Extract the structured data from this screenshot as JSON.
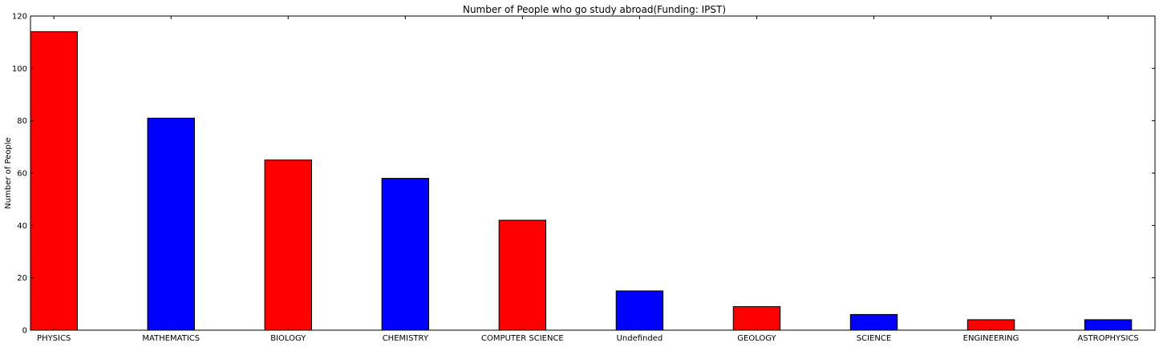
{
  "chart_data": {
    "type": "bar",
    "title": "Number of People who go study abroad(Funding: IPST)",
    "xlabel": "",
    "ylabel": "Number of People",
    "categories": [
      "PHYSICS",
      "MATHEMATICS",
      "BIOLOGY",
      "CHEMISTRY",
      "COMPUTER SCIENCE",
      "Undefinded",
      "GEOLOGY",
      "SCIENCE",
      "ENGINEERING",
      "ASTROPHYSICS"
    ],
    "values": [
      114,
      81,
      65,
      58,
      42,
      15,
      9,
      6,
      4,
      4
    ],
    "bar_colors": [
      "#ff0000",
      "#0000ff",
      "#ff0000",
      "#0000ff",
      "#ff0000",
      "#0000ff",
      "#ff0000",
      "#0000ff",
      "#ff0000",
      "#0000ff"
    ],
    "ylim": [
      0,
      120
    ],
    "yticks": [
      0,
      20,
      40,
      60,
      80,
      100,
      120
    ],
    "grid": false,
    "legend": false
  }
}
